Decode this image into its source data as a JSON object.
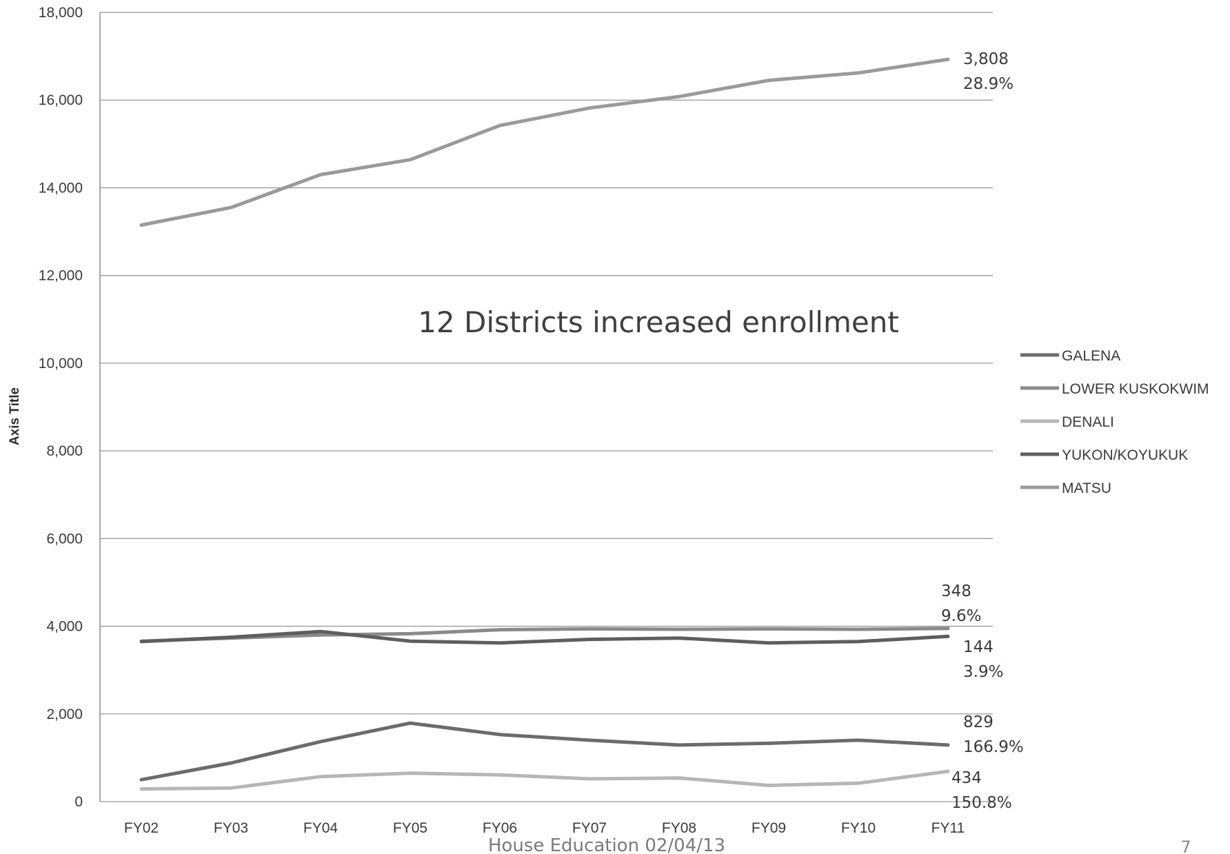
{
  "chart_data": {
    "type": "line",
    "title": "12 Districts increased enrollment",
    "ylabel": "Axis Title",
    "xlabel": "",
    "ylim": [
      0,
      18000
    ],
    "yticks": [
      0,
      2000,
      4000,
      6000,
      8000,
      10000,
      12000,
      14000,
      16000,
      18000
    ],
    "ytick_labels": [
      "0",
      "2,000",
      "4,000",
      "6,000",
      "8,000",
      "10,000",
      "12,000",
      "14,000",
      "16,000",
      "18,000"
    ],
    "categories": [
      "FY02",
      "FY03",
      "FY04",
      "FY05",
      "FY06",
      "FY07",
      "FY08",
      "FY09",
      "FY10",
      "FY11"
    ],
    "grid": "horizontal",
    "legend_position": "right",
    "series": [
      {
        "name": "GALENA",
        "color": "#6b6b6b",
        "values": [
          500,
          880,
          1370,
          1790,
          1530,
          1400,
          1290,
          1330,
          1400,
          1290
        ]
      },
      {
        "name": "LOWER KUSKOKWIM",
        "color": "#8a8a8a",
        "values": [
          3660,
          3730,
          3800,
          3830,
          3920,
          3940,
          3930,
          3940,
          3930,
          3950
        ]
      },
      {
        "name": "DENALI",
        "color": "#b6b6b6",
        "values": [
          290,
          310,
          570,
          650,
          610,
          520,
          540,
          370,
          420,
          690
        ]
      },
      {
        "name": "YUKON/KOYUKUK",
        "color": "#5e5e5e",
        "values": [
          3650,
          3750,
          3880,
          3660,
          3620,
          3700,
          3730,
          3620,
          3650,
          3770
        ]
      },
      {
        "name": "MATSU",
        "color": "#9a9a9a",
        "values": [
          13150,
          13550,
          14300,
          14640,
          15420,
          15820,
          16080,
          16450,
          16620,
          16930
        ]
      }
    ],
    "annotations": [
      {
        "lines": [
          "3,808",
          "28.9%"
        ]
      },
      {
        "lines": [
          "348",
          "9.6%"
        ]
      },
      {
        "lines": [
          "144",
          "3.9%"
        ]
      },
      {
        "lines": [
          "829",
          "166.9%"
        ]
      },
      {
        "lines": [
          "434",
          "150.8%"
        ]
      }
    ]
  },
  "footer": {
    "text": "House Education 02/04/13",
    "page_number": "7"
  }
}
